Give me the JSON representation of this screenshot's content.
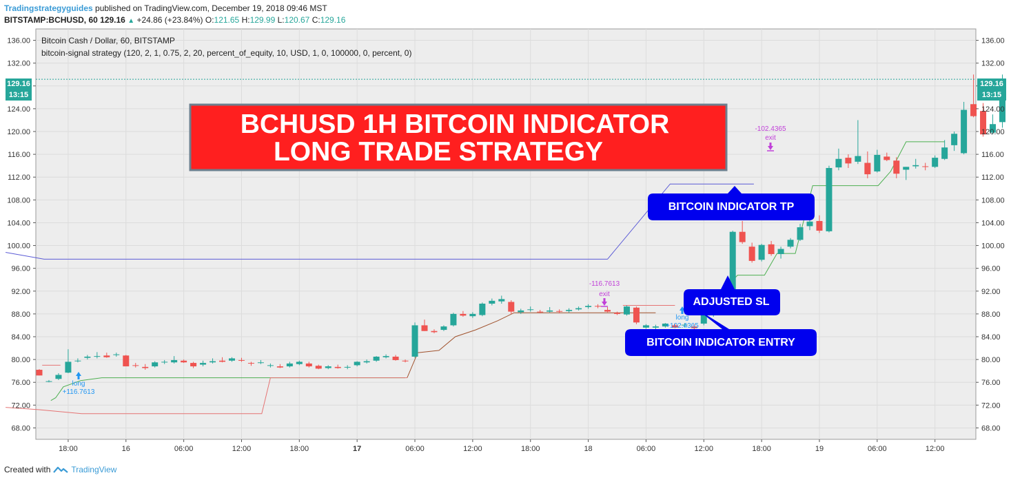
{
  "header": {
    "publisher": "Tradingstrategyguides",
    "published_text": "published on TradingView.com, December 19, 2018 09:46 MST",
    "symbol": "BITSTAMP:BCHUSD, 60",
    "last": "129.16",
    "change": "+24.86 (+23.84%)",
    "o_label": "O:",
    "o": "121.65",
    "h_label": "H:",
    "h": "129.99",
    "l_label": "L:",
    "l": "120.67",
    "c_label": "C:",
    "c": "129.16"
  },
  "chart": {
    "legend_title": "Bitcoin Cash / Dollar, 60, BITSTAMP",
    "legend_strategy": "bitcoin-signal strategy (120, 2, 1, 0.75, 2, 20, percent_of_equity, 10, USD, 1, 0, 100000, 0, percent, 0)",
    "price_badge": "129.16",
    "time_badge": "13:15",
    "banner_line1": "BCHUSD 1H BITCOIN INDICATOR",
    "banner_line2": "LONG TRADE STRATEGY",
    "callout_tp": "BITCOIN INDICATOR TP",
    "callout_sl": "ADJUSTED SL",
    "callout_entry": "BITCOIN INDICATOR ENTRY",
    "signal1_label": "long",
    "signal1_value": "+116.7613",
    "signal2_label": "-116.7613",
    "signal2_exit": "exit",
    "signal3_label": "long",
    "signal3_value": "+102.4365",
    "signal4_label": "-102.4365",
    "signal4_exit": "exit"
  },
  "footer": {
    "created_with": "Created with",
    "brand": "TradingView"
  },
  "colors": {
    "up": "#26a69a",
    "down": "#ef5350",
    "tp_line": "#5b5bd6",
    "sl_line_green": "#4caf50",
    "stop_line_red": "#e57373",
    "stop_line_brown": "#a0522d",
    "banner_bg": "#ff1f1f",
    "callout_bg": "#0000ee",
    "signal_long": "#2196f3",
    "signal_exit": "#c040d8",
    "price_line": "#26a69a"
  },
  "chart_data": {
    "type": "candlestick",
    "ylim": [
      66,
      138
    ],
    "yticks": [
      "68.00",
      "72.00",
      "76.00",
      "80.00",
      "84.00",
      "88.00",
      "92.00",
      "96.00",
      "100.00",
      "104.00",
      "108.00",
      "112.00",
      "116.00",
      "120.00",
      "124.00",
      "128.00",
      "132.00",
      "136.00"
    ],
    "xticks": [
      {
        "label": "18:00",
        "i": 3,
        "bold": false
      },
      {
        "label": "16",
        "i": 9,
        "bold": false
      },
      {
        "label": "06:00",
        "i": 15,
        "bold": false
      },
      {
        "label": "12:00",
        "i": 21,
        "bold": false
      },
      {
        "label": "18:00",
        "i": 27,
        "bold": false
      },
      {
        "label": "17",
        "i": 33,
        "bold": true
      },
      {
        "label": "06:00",
        "i": 39,
        "bold": false
      },
      {
        "label": "12:00",
        "i": 45,
        "bold": false
      },
      {
        "label": "18:00",
        "i": 51,
        "bold": false
      },
      {
        "label": "18",
        "i": 57,
        "bold": false
      },
      {
        "label": "06:00",
        "i": 63,
        "bold": false
      },
      {
        "label": "12:00",
        "i": 69,
        "bold": false
      },
      {
        "label": "18:00",
        "i": 75,
        "bold": false
      },
      {
        "label": "19",
        "i": 81,
        "bold": false
      },
      {
        "label": "06:00",
        "i": 87,
        "bold": false
      },
      {
        "label": "12:00",
        "i": 93,
        "bold": false
      }
    ],
    "last_price": 129.16,
    "candles": [
      [
        78.2,
        78.3,
        77.2,
        77.2
      ],
      [
        76.2,
        76.4,
        76.0,
        76.2
      ],
      [
        76.6,
        77.6,
        76.4,
        77.3
      ],
      [
        77.7,
        81.8,
        77.6,
        79.6
      ],
      [
        79.7,
        80.2,
        79.5,
        79.8
      ],
      [
        80.3,
        80.8,
        80.0,
        80.5
      ],
      [
        80.5,
        81.3,
        80.2,
        80.6
      ],
      [
        80.7,
        81.2,
        80.3,
        80.4
      ],
      [
        80.8,
        81.2,
        80.5,
        80.9
      ],
      [
        80.7,
        80.8,
        78.8,
        78.8
      ],
      [
        79.0,
        79.4,
        78.6,
        78.9
      ],
      [
        78.7,
        79.2,
        78.2,
        78.5
      ],
      [
        78.8,
        79.7,
        78.6,
        79.5
      ],
      [
        79.5,
        79.9,
        79.2,
        79.6
      ],
      [
        79.5,
        80.6,
        79.3,
        79.9
      ],
      [
        79.8,
        80.0,
        79.4,
        79.5
      ],
      [
        79.4,
        79.6,
        78.5,
        78.8
      ],
      [
        79.1,
        79.8,
        78.8,
        79.4
      ],
      [
        79.5,
        80.2,
        79.3,
        79.7
      ],
      [
        79.8,
        80.4,
        79.5,
        79.6
      ],
      [
        79.8,
        80.4,
        79.6,
        80.2
      ],
      [
        79.9,
        80.3,
        79.6,
        79.8
      ],
      [
        79.4,
        79.6,
        78.9,
        79.3
      ],
      [
        79.4,
        79.9,
        79.2,
        79.5
      ],
      [
        79.0,
        79.3,
        78.6,
        79.0
      ],
      [
        78.8,
        79.2,
        78.5,
        78.6
      ],
      [
        78.8,
        79.6,
        78.6,
        79.3
      ],
      [
        79.2,
        79.8,
        79.0,
        79.6
      ],
      [
        79.3,
        79.6,
        78.6,
        78.8
      ],
      [
        78.9,
        79.1,
        78.3,
        78.4
      ],
      [
        78.5,
        79.0,
        78.3,
        78.8
      ],
      [
        78.7,
        79.1,
        78.4,
        78.5
      ],
      [
        78.6,
        79.0,
        78.3,
        78.7
      ],
      [
        79.0,
        79.7,
        78.8,
        79.6
      ],
      [
        79.5,
        80.0,
        79.3,
        79.7
      ],
      [
        79.8,
        80.6,
        79.6,
        80.5
      ],
      [
        80.4,
        80.9,
        80.2,
        80.6
      ],
      [
        80.5,
        80.8,
        79.8,
        79.9
      ],
      [
        79.8,
        80.0,
        79.5,
        79.7
      ],
      [
        80.5,
        86.5,
        80.3,
        86.0
      ],
      [
        86.0,
        87.0,
        85.0,
        85.0
      ],
      [
        85.0,
        85.3,
        84.6,
        84.8
      ],
      [
        85.2,
        86.0,
        85.0,
        85.8
      ],
      [
        86.0,
        88.2,
        85.8,
        88.0
      ],
      [
        88.0,
        88.5,
        87.5,
        87.7
      ],
      [
        87.6,
        88.3,
        87.3,
        88.0
      ],
      [
        87.8,
        90.0,
        87.6,
        89.8
      ],
      [
        89.8,
        90.7,
        89.5,
        90.3
      ],
      [
        90.2,
        91.2,
        89.8,
        90.6
      ],
      [
        90.1,
        90.4,
        88.0,
        88.4
      ],
      [
        88.3,
        88.9,
        88.0,
        88.6
      ],
      [
        88.7,
        89.3,
        88.4,
        88.8
      ],
      [
        88.4,
        88.7,
        88.1,
        88.3
      ],
      [
        88.4,
        89.2,
        88.2,
        88.6
      ],
      [
        88.5,
        88.8,
        88.1,
        88.4
      ],
      [
        88.5,
        89.0,
        88.2,
        88.7
      ],
      [
        88.8,
        89.3,
        88.6,
        89.0
      ],
      [
        89.2,
        89.7,
        88.9,
        89.4
      ],
      [
        89.4,
        89.7,
        89.0,
        89.3
      ],
      [
        88.7,
        89.2,
        88.3,
        88.4
      ],
      [
        88.2,
        88.4,
        87.8,
        88.0
      ],
      [
        87.9,
        89.5,
        87.7,
        89.3
      ],
      [
        89.1,
        89.3,
        86.2,
        86.5
      ],
      [
        85.6,
        86.2,
        85.4,
        86.0
      ],
      [
        85.6,
        86.1,
        85.3,
        85.8
      ],
      [
        85.8,
        86.4,
        85.6,
        86.3
      ],
      [
        86.0,
        86.3,
        85.5,
        85.6
      ],
      [
        86.0,
        86.4,
        85.6,
        86.1
      ],
      [
        85.8,
        86.2,
        85.3,
        85.5
      ],
      [
        86.3,
        88.6,
        86.0,
        88.0
      ],
      [
        87.8,
        89.0,
        87.5,
        88.6
      ],
      [
        88.7,
        92.6,
        88.5,
        91.7
      ],
      [
        89.5,
        102.6,
        89.2,
        102.4
      ],
      [
        102.4,
        104.3,
        100.3,
        100.6
      ],
      [
        99.8,
        100.5,
        97.0,
        97.3
      ],
      [
        97.5,
        100.3,
        97.2,
        100.1
      ],
      [
        100.2,
        100.8,
        98.2,
        98.5
      ],
      [
        98.5,
        99.8,
        97.7,
        99.4
      ],
      [
        99.8,
        101.3,
        99.5,
        101.0
      ],
      [
        101.0,
        103.8,
        100.8,
        103.2
      ],
      [
        103.4,
        104.5,
        102.7,
        104.2
      ],
      [
        104.3,
        105.3,
        102.2,
        102.6
      ],
      [
        102.5,
        114.0,
        102.3,
        113.6
      ],
      [
        113.7,
        117.0,
        113.2,
        115.2
      ],
      [
        115.4,
        116.0,
        113.6,
        114.4
      ],
      [
        114.7,
        122.0,
        114.3,
        115.7
      ],
      [
        114.5,
        116.5,
        111.8,
        112.5
      ],
      [
        113.0,
        116.8,
        112.8,
        115.9
      ],
      [
        115.6,
        116.3,
        114.8,
        115.0
      ],
      [
        114.9,
        115.5,
        111.8,
        112.6
      ],
      [
        113.3,
        113.8,
        111.5,
        113.8
      ],
      [
        113.9,
        115.2,
        113.5,
        114.1
      ],
      [
        113.9,
        114.5,
        113.2,
        113.8
      ],
      [
        113.8,
        115.8,
        113.6,
        115.4
      ],
      [
        115.2,
        118.5,
        115.0,
        117.2
      ],
      [
        117.6,
        120.0,
        116.6,
        119.6
      ],
      [
        116.2,
        125.2,
        116.0,
        123.8
      ],
      [
        124.8,
        130.0,
        122.5,
        122.7
      ],
      [
        123.6,
        125.0,
        119.1,
        119.5
      ],
      [
        119.8,
        123.0,
        119.5,
        121.3
      ],
      [
        121.65,
        129.99,
        120.67,
        129.16
      ]
    ],
    "tp_line": [
      [
        -3.5,
        98.8
      ],
      [
        0.5,
        97.6
      ],
      [
        11,
        97.6
      ],
      [
        59.0,
        97.6
      ],
      [
        65.5,
        110.8
      ],
      [
        74.2,
        110.8
      ]
    ],
    "sl_green_1": [
      [
        1.2,
        72.8
      ],
      [
        1.7,
        73.3
      ],
      [
        2.5,
        75.2
      ],
      [
        4.3,
        76.3
      ],
      [
        6.5,
        76.8
      ],
      [
        13,
        76.8
      ],
      [
        27,
        76.8
      ],
      [
        38,
        76.8
      ]
    ],
    "stop_red": [
      [
        -3.5,
        71.6
      ],
      [
        0.0,
        71.2
      ],
      [
        4.4,
        70.5
      ],
      [
        10.5,
        70.5
      ],
      [
        22.3,
        70.5
      ],
      [
        23.1,
        70.5
      ],
      [
        24.0,
        76.8
      ],
      [
        38.2,
        76.8
      ]
    ],
    "stop_brown": [
      [
        38.2,
        76.8
      ],
      [
        39.3,
        81.2
      ],
      [
        41.5,
        81.6
      ],
      [
        43.2,
        84.0
      ],
      [
        45.3,
        85.2
      ],
      [
        47.6,
        86.8
      ],
      [
        49.3,
        88.2
      ],
      [
        49.8,
        88.2
      ],
      [
        64.0,
        88.2
      ]
    ],
    "sl_green_2": [
      [
        70.0,
        88.2
      ],
      [
        71.3,
        92.6
      ],
      [
        72.5,
        94.8
      ],
      [
        75.3,
        94.8
      ],
      [
        76.6,
        98.6
      ],
      [
        78.5,
        98.6
      ],
      [
        80.3,
        110.5
      ],
      [
        87.1,
        110.5
      ],
      [
        88.4,
        113.0
      ],
      [
        90.0,
        118.2
      ],
      [
        94.0,
        118.2
      ]
    ]
  }
}
